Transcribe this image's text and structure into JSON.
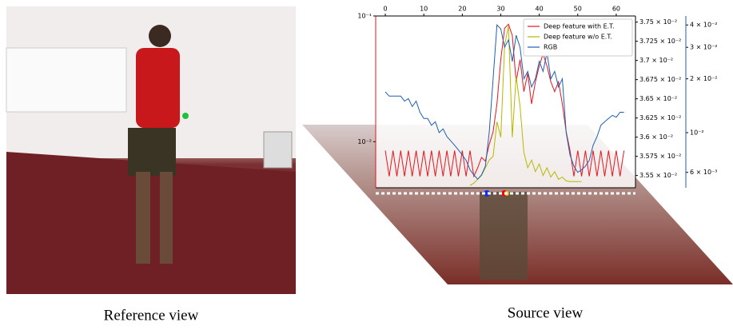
{
  "captions": [
    "Reference view",
    "Source view"
  ],
  "chart_data": {
    "type": "line",
    "x": [
      0,
      1,
      2,
      3,
      4,
      5,
      6,
      7,
      8,
      9,
      10,
      11,
      12,
      13,
      14,
      15,
      16,
      17,
      18,
      19,
      20,
      21,
      22,
      23,
      24,
      25,
      26,
      27,
      28,
      29,
      30,
      31,
      32,
      33,
      34,
      35,
      36,
      37,
      38,
      39,
      40,
      41,
      42,
      43,
      44,
      45,
      46,
      47,
      48,
      49,
      50,
      51,
      52,
      53,
      54,
      55,
      56,
      57,
      58,
      59,
      60,
      61,
      62
    ],
    "xlim": [
      -2.5,
      65
    ],
    "xticks": [
      0,
      10,
      20,
      30,
      40,
      50,
      60
    ],
    "ylim": [
      0.0043,
      0.1
    ],
    "ylog": true,
    "yticks": [
      {
        "value": 0.1,
        "label": "10⁻¹"
      },
      {
        "value": 0.01,
        "label": "10⁻²"
      }
    ],
    "y2lim": [
      0.03534,
      0.03758
    ],
    "y2ticks": [
      {
        "value": 0.0355,
        "label": "3.55 × 10⁻²"
      },
      {
        "value": 0.03575,
        "label": "3.575 × 10⁻²"
      },
      {
        "value": 0.036,
        "label": "3.6 × 10⁻²"
      },
      {
        "value": 0.03625,
        "label": "3.625 × 10⁻²"
      },
      {
        "value": 0.0365,
        "label": "3.65 × 10⁻²"
      },
      {
        "value": 0.03675,
        "label": "3.675 × 10⁻²"
      },
      {
        "value": 0.037,
        "label": "3.7 × 10⁻²"
      },
      {
        "value": 0.03725,
        "label": "3.725 × 10⁻²"
      },
      {
        "value": 0.0375,
        "label": "3.75 × 10⁻²"
      }
    ],
    "y3lim": [
      0.00492,
      0.0449
    ],
    "y3log": true,
    "y3ticks": [
      {
        "value": 0.006,
        "label": "6 × 10⁻³"
      },
      {
        "value": 0.01,
        "label": "10⁻²"
      },
      {
        "value": 0.02,
        "label": "2 × 10⁻²"
      },
      {
        "value": 0.03,
        "label": "3 × 10⁻²"
      },
      {
        "value": 0.04,
        "label": "4 × 10⁻²"
      }
    ],
    "legend": "upper right",
    "series": [
      {
        "name": "Deep feature with E.T.",
        "color": "#e8141c",
        "axis": "y",
        "values": [
          0.0085,
          0.0053,
          0.0085,
          0.0053,
          0.0085,
          0.0053,
          0.0085,
          0.0053,
          0.0085,
          0.0053,
          0.0085,
          0.0053,
          0.0085,
          0.0053,
          0.0085,
          0.0053,
          0.0085,
          0.0053,
          0.0085,
          0.0053,
          0.0085,
          0.0053,
          0.0085,
          0.0053,
          0.0062,
          0.0075,
          0.007,
          0.0095,
          0.012,
          0.02,
          0.045,
          0.08,
          0.086,
          0.07,
          0.03,
          0.045,
          0.025,
          0.035,
          0.02,
          0.03,
          0.04,
          0.05,
          0.04,
          0.03,
          0.025,
          0.03,
          0.02,
          0.012,
          0.0085,
          0.0053,
          0.0085,
          0.0053,
          0.0085,
          0.0053,
          0.0085,
          0.0053,
          0.0085,
          0.0053,
          0.0085,
          0.0053,
          0.0085,
          0.0053,
          0.0085
        ]
      },
      {
        "name": "Deep feature w/o E.T.",
        "color": "#b8b800",
        "axis": "y2",
        "values": [
          null,
          null,
          null,
          null,
          null,
          null,
          null,
          null,
          null,
          null,
          null,
          null,
          null,
          null,
          null,
          null,
          null,
          null,
          null,
          null,
          null,
          null,
          0.03537,
          0.0354,
          0.03545,
          0.0355,
          0.0356,
          0.0357,
          0.03575,
          0.0362,
          0.036,
          0.0372,
          0.03745,
          0.036,
          0.0368,
          0.0364,
          0.0358,
          0.0356,
          0.0357,
          0.03555,
          0.03565,
          0.0355,
          0.0356,
          0.03548,
          0.03555,
          0.03545,
          0.03548,
          0.03543,
          0.03542,
          0.03542,
          0.03542,
          0.03542,
          null,
          null,
          null,
          null,
          null,
          null,
          null,
          null,
          null,
          null,
          null
        ]
      },
      {
        "name": "RGB",
        "color": "#1f5fb4",
        "axis": "y3",
        "values": [
          0.0169,
          0.016,
          0.016,
          0.016,
          0.016,
          0.015,
          0.0155,
          0.014,
          0.015,
          0.013,
          0.012,
          0.012,
          0.011,
          0.0115,
          0.01,
          0.0105,
          0.0095,
          0.009,
          0.0085,
          0.008,
          0.0075,
          0.007,
          0.0062,
          0.0058,
          0.0055,
          0.0058,
          0.0065,
          0.01,
          0.02,
          0.04,
          0.038,
          0.03,
          0.033,
          0.025,
          0.035,
          0.03,
          0.02,
          0.022,
          0.018,
          0.02,
          0.025,
          0.022,
          0.028,
          0.02,
          0.022,
          0.018,
          0.02,
          0.01,
          0.0075,
          0.0065,
          0.006,
          0.0062,
          0.0065,
          0.007,
          0.0085,
          0.0095,
          0.011,
          0.0115,
          0.012,
          0.0125,
          0.0122,
          0.013,
          0.013
        ]
      }
    ]
  }
}
